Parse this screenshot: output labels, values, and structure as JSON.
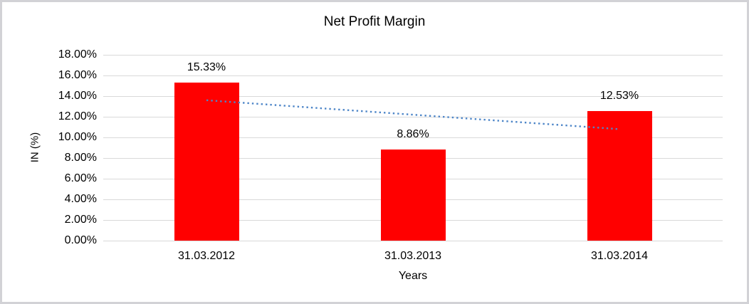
{
  "frame": {
    "border_color": "#d2d2d6",
    "background": "#ffffff"
  },
  "chart_data": {
    "type": "bar",
    "title": "Net Profit Margin",
    "xlabel": "Years",
    "ylabel": "IN (%)",
    "categories": [
      "31.03.2012",
      "31.03.2013",
      "31.03.2014"
    ],
    "values": [
      15.33,
      8.86,
      12.53
    ],
    "value_labels": [
      "15.33%",
      "8.86%",
      "12.53%"
    ],
    "ylim": [
      0,
      18
    ],
    "ytick_step": 2,
    "ytick_labels": [
      "0.00%",
      "2.00%",
      "4.00%",
      "6.00%",
      "8.00%",
      "10.00%",
      "12.00%",
      "14.00%",
      "16.00%",
      "18.00%"
    ],
    "grid": true,
    "legend": "none",
    "bar_color": "#ff0000",
    "gridline_color": "#d9d9d9",
    "text_color": "#000000",
    "trendline": {
      "type": "linear",
      "style": "dotted",
      "color": "#4e86c8",
      "start_value": 13.6,
      "end_value": 10.8
    }
  }
}
